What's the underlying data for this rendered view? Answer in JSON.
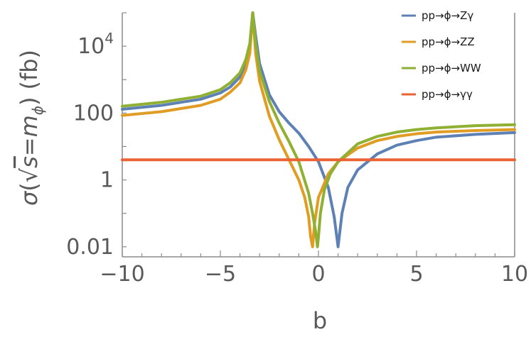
{
  "chart_data": {
    "type": "line",
    "xlabel": "b",
    "ylabel_parts": {
      "sigma": "σ",
      "open": "(",
      "radicand": "s",
      "equals": "=",
      "m": "m",
      "sub": "ϕ",
      "close": ")",
      "unit": "(fb)"
    },
    "x_ticks": [
      {
        "value": -10,
        "label": "−10"
      },
      {
        "value": -5,
        "label": "−5"
      },
      {
        "value": 0,
        "label": "0"
      },
      {
        "value": 5,
        "label": "5"
      },
      {
        "value": 10,
        "label": "10"
      }
    ],
    "y_ticks": [
      {
        "value": 0.01,
        "label": "0.01"
      },
      {
        "value": 1,
        "label": "1"
      },
      {
        "value": 100,
        "label": "100"
      },
      {
        "value": 10000,
        "label": "10",
        "exponent": "4"
      }
    ],
    "xlim": [
      -10,
      10
    ],
    "ylim": [
      0.005,
      100000
    ],
    "y_scale": "log",
    "grid": false,
    "legend_position": "top-right",
    "series": [
      {
        "name": "pp→ϕ→Zγ",
        "color": "#5e81b5",
        "x": [
          -10,
          -8,
          -6,
          -5,
          -4.5,
          -4,
          -3.7,
          -3.5,
          -3.35,
          -3.2,
          -3.0,
          -2.5,
          -2.0,
          -1.5,
          -1.0,
          -0.5,
          0,
          0.5,
          0.8,
          1.0,
          1.2,
          1.5,
          2,
          3,
          4,
          5,
          6,
          8,
          10
        ],
        "y": [
          130,
          170,
          260,
          400,
          600,
          1200,
          3000,
          10000,
          100000,
          20000,
          3000,
          350,
          110,
          50,
          25,
          10,
          3.5,
          0.6,
          0.08,
          0.01,
          0.1,
          0.6,
          2.0,
          6,
          11,
          15,
          19,
          23,
          26
        ]
      },
      {
        "name": "pp→ϕ→ZZ",
        "color": "#e19c24",
        "x": [
          -10,
          -8,
          -6,
          -5,
          -4.5,
          -4,
          -3.7,
          -3.5,
          -3.35,
          -3.2,
          -3.0,
          -2.5,
          -2.0,
          -1.5,
          -1.0,
          -0.7,
          -0.5,
          -0.4,
          -0.3,
          -0.2,
          0,
          0.5,
          1,
          2,
          3,
          4,
          5,
          6,
          8,
          10
        ],
        "y": [
          85,
          110,
          170,
          260,
          420,
          800,
          2000,
          6000,
          100000,
          6000,
          900,
          80,
          16,
          4,
          1,
          0.3,
          0.08,
          0.02,
          0.01,
          0.05,
          0.3,
          1.5,
          3.5,
          9,
          15,
          20,
          24,
          27,
          30,
          32
        ]
      },
      {
        "name": "pp→ϕ→WW",
        "color": "#8fb032",
        "x": [
          -10,
          -8,
          -6,
          -5,
          -4.5,
          -4,
          -3.7,
          -3.5,
          -3.35,
          -3.2,
          -3.0,
          -2.5,
          -2.0,
          -1.5,
          -1.0,
          -0.5,
          -0.3,
          -0.15,
          -0.05,
          0,
          0.1,
          0.3,
          0.6,
          1,
          2,
          3,
          4,
          5,
          6,
          8,
          10
        ],
        "y": [
          160,
          210,
          320,
          500,
          800,
          1600,
          4000,
          12000,
          100000,
          12000,
          1800,
          220,
          50,
          14,
          3.5,
          0.4,
          0.1,
          0.03,
          0.01,
          0.02,
          0.1,
          0.5,
          1.5,
          3.5,
          12,
          20,
          27,
          32,
          36,
          42,
          45
        ]
      },
      {
        "name": "pp→ϕ→γγ",
        "color": "#eb6235",
        "x": [
          -10,
          10
        ],
        "y": [
          4,
          4
        ]
      }
    ]
  }
}
